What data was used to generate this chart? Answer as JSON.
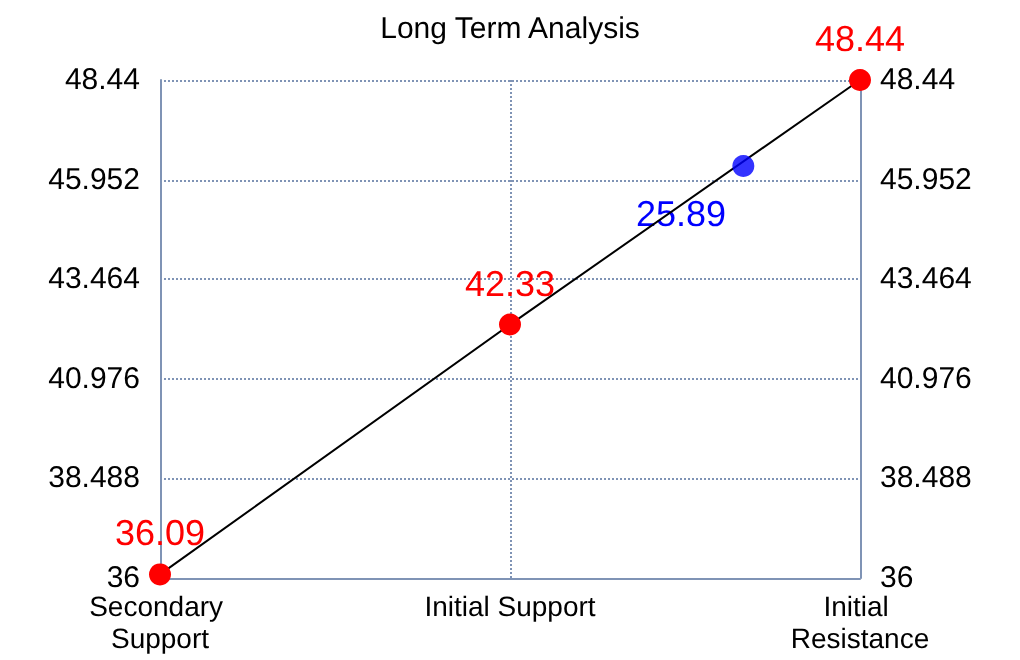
{
  "chart_data": {
    "type": "line",
    "title": "Long Term Analysis",
    "categories": [
      "Secondary Support",
      null,
      null,
      "Initial Support",
      null,
      null,
      "Initial Resistance"
    ],
    "ylim": [
      36,
      48.44
    ],
    "yticks": [
      36,
      38.488,
      40.976,
      43.464,
      45.952,
      48.44
    ],
    "y2lim": [
      36,
      48.44
    ],
    "y2ticks": [
      36,
      38.488,
      40.976,
      43.464,
      45.952,
      48.44
    ],
    "grid": true,
    "marker": "circle",
    "line_style": "solid",
    "series": [
      {
        "values": [
          36.09,
          null,
          null,
          42.33,
          null,
          null,
          48.44
        ],
        "color": "#000000",
        "colors": [
          "#ff0000",
          null,
          null,
          "#ff0000",
          null,
          null,
          "#ff0000"
        ],
        "value_labels": [
          "36.09",
          null,
          null,
          "42.33",
          null,
          null,
          "48.44"
        ]
      },
      {
        "type": "scatter",
        "values": [
          null,
          null,
          null,
          null,
          null,
          46.29,
          null
        ],
        "color": "#0000ff"
      }
    ],
    "annotations": [
      "25.89"
    ]
  }
}
